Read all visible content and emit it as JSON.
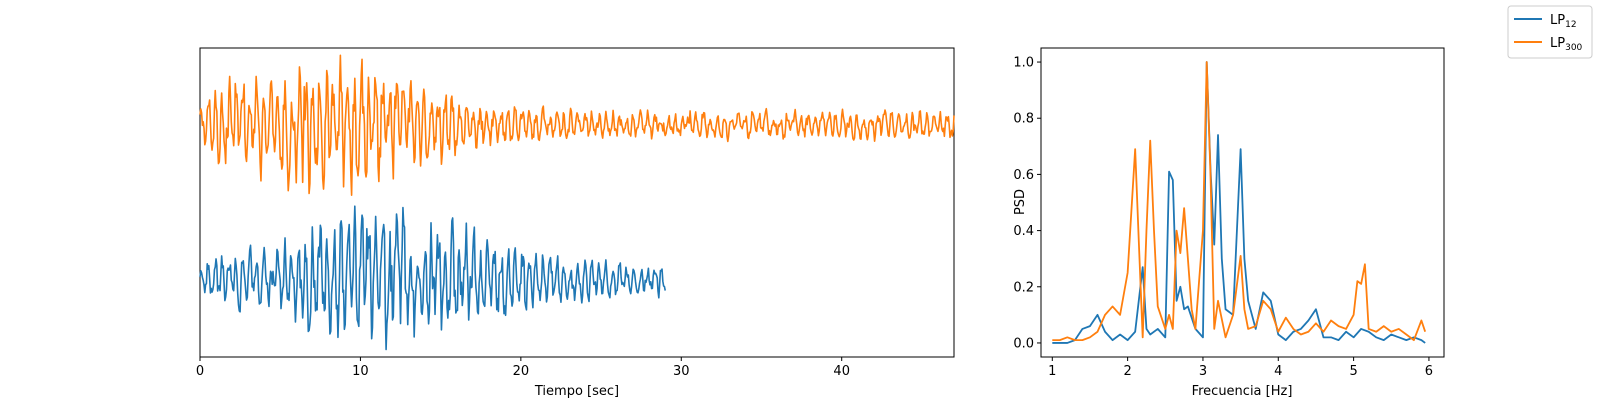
{
  "chart_data": [
    {
      "type": "line",
      "title": "",
      "xlabel": "Tiempo [sec]",
      "ylabel": "",
      "xlim": [
        0,
        47
      ],
      "xticks": [
        0,
        10,
        20,
        30,
        40
      ],
      "y_ticks_shown": false,
      "grid": false,
      "series": [
        {
          "color": "#1f77b4",
          "description": "waveform, offset lower trace",
          "t_range": [
            0,
            29
          ],
          "baseline": 0,
          "envelope_peak_time": 12,
          "peak_positive": 1.0,
          "peak_negative": -0.95
        },
        {
          "color": "#ff7f0e",
          "description": "waveform, offset upper trace",
          "t_range": [
            0,
            47
          ],
          "baseline": 2.1,
          "envelope_peak_time": 8,
          "peak_positive": 1.0,
          "peak_negative": -0.95
        }
      ]
    },
    {
      "type": "line",
      "title": "",
      "xlabel": "Frecuencia [Hz]",
      "ylabel": "PSD",
      "xlim": [
        0.85,
        6.2
      ],
      "ylim": [
        -0.05,
        1.05
      ],
      "xticks": [
        1,
        2,
        3,
        4,
        5,
        6
      ],
      "yticks": [
        "0.0",
        "0.2",
        "0.4",
        "0.6",
        "0.8",
        "1.0"
      ],
      "grid": false,
      "series": [
        {
          "name_main": "LP",
          "name_sub": "12",
          "color": "#1f77b4",
          "x": [
            1.0,
            1.1,
            1.2,
            1.3,
            1.4,
            1.5,
            1.6,
            1.7,
            1.8,
            1.9,
            2.0,
            2.1,
            2.2,
            2.25,
            2.3,
            2.4,
            2.5,
            2.55,
            2.6,
            2.65,
            2.7,
            2.75,
            2.8,
            2.9,
            3.0,
            3.05,
            3.1,
            3.15,
            3.2,
            3.25,
            3.3,
            3.4,
            3.5,
            3.55,
            3.6,
            3.7,
            3.8,
            3.9,
            4.0,
            4.1,
            4.2,
            4.3,
            4.4,
            4.5,
            4.6,
            4.7,
            4.8,
            4.9,
            5.0,
            5.1,
            5.2,
            5.3,
            5.4,
            5.5,
            5.6,
            5.7,
            5.8,
            5.9,
            5.95
          ],
          "y": [
            0.0,
            0.0,
            0.0,
            0.01,
            0.05,
            0.06,
            0.1,
            0.04,
            0.01,
            0.03,
            0.01,
            0.04,
            0.27,
            0.05,
            0.03,
            0.05,
            0.02,
            0.61,
            0.58,
            0.15,
            0.2,
            0.12,
            0.13,
            0.05,
            0.02,
            1.0,
            0.62,
            0.35,
            0.74,
            0.3,
            0.12,
            0.1,
            0.69,
            0.3,
            0.15,
            0.05,
            0.18,
            0.15,
            0.03,
            0.01,
            0.04,
            0.05,
            0.08,
            0.12,
            0.02,
            0.02,
            0.01,
            0.04,
            0.02,
            0.05,
            0.04,
            0.02,
            0.01,
            0.03,
            0.02,
            0.01,
            0.02,
            0.01,
            0.0
          ]
        },
        {
          "name_main": "LP",
          "name_sub": "300",
          "color": "#ff7f0e",
          "x": [
            1.0,
            1.1,
            1.2,
            1.3,
            1.4,
            1.5,
            1.6,
            1.7,
            1.8,
            1.9,
            2.0,
            2.1,
            2.15,
            2.2,
            2.25,
            2.3,
            2.35,
            2.4,
            2.5,
            2.55,
            2.6,
            2.65,
            2.7,
            2.75,
            2.8,
            2.85,
            2.9,
            3.0,
            3.05,
            3.1,
            3.15,
            3.2,
            3.3,
            3.4,
            3.5,
            3.55,
            3.6,
            3.7,
            3.8,
            3.9,
            4.0,
            4.1,
            4.2,
            4.3,
            4.4,
            4.5,
            4.6,
            4.7,
            4.8,
            4.9,
            5.0,
            5.05,
            5.1,
            5.15,
            5.2,
            5.3,
            5.4,
            5.5,
            5.6,
            5.7,
            5.8,
            5.9,
            5.95
          ],
          "y": [
            0.01,
            0.01,
            0.02,
            0.01,
            0.01,
            0.02,
            0.04,
            0.1,
            0.13,
            0.1,
            0.25,
            0.69,
            0.35,
            0.02,
            0.4,
            0.72,
            0.4,
            0.13,
            0.05,
            0.1,
            0.05,
            0.4,
            0.32,
            0.48,
            0.3,
            0.12,
            0.05,
            0.4,
            1.0,
            0.6,
            0.05,
            0.15,
            0.02,
            0.1,
            0.31,
            0.12,
            0.05,
            0.06,
            0.15,
            0.12,
            0.04,
            0.09,
            0.05,
            0.03,
            0.04,
            0.07,
            0.04,
            0.08,
            0.06,
            0.05,
            0.1,
            0.22,
            0.21,
            0.28,
            0.05,
            0.04,
            0.06,
            0.04,
            0.05,
            0.03,
            0.01,
            0.08,
            0.04
          ]
        }
      ]
    }
  ]
}
